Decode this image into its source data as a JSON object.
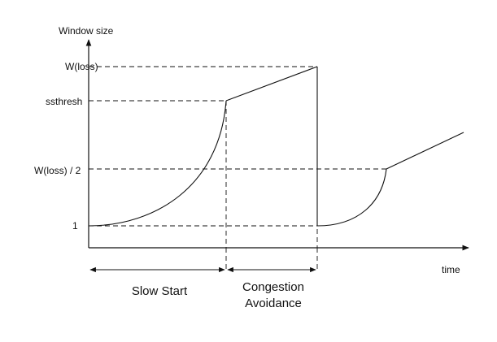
{
  "diagram": {
    "y_axis_title": "Window size",
    "x_axis_title": "time",
    "y_levels": [
      {
        "id": "wloss",
        "label": "W(loss)"
      },
      {
        "id": "ssthresh",
        "label": "ssthresh"
      },
      {
        "id": "half",
        "label": "W(loss) / 2"
      },
      {
        "id": "one",
        "label": "1"
      }
    ],
    "phases": [
      {
        "id": "slow-start",
        "lines": [
          "Slow Start"
        ]
      },
      {
        "id": "congestion-avoidance",
        "lines": [
          "Congestion",
          "Avoidance"
        ]
      }
    ]
  }
}
